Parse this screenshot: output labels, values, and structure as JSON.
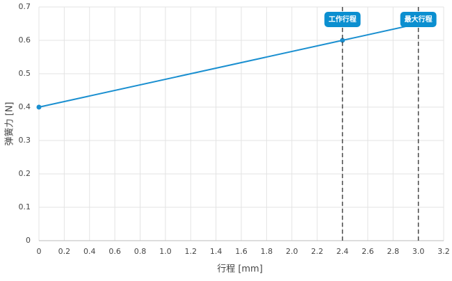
{
  "chart_data": {
    "type": "line",
    "x_label": "行程 [mm]",
    "y_label": "弹簧力 [N]",
    "x": [
      0,
      2.4,
      3.0
    ],
    "series": [
      {
        "name": "弹簧力",
        "color": "#1a8fd0",
        "values": [
          0.4,
          0.6,
          0.65
        ]
      }
    ],
    "xlim": [
      0,
      3.2
    ],
    "xticks": [
      0,
      0.2,
      0.4,
      0.6,
      0.8,
      {
        "value": 1,
        "label": "1.0"
      },
      1.2,
      1.4,
      1.6,
      1.8,
      {
        "value": 2,
        "label": "2.0"
      },
      2.2,
      2.4,
      2.6,
      2.8,
      {
        "value": 3,
        "label": "3.0"
      },
      3.2
    ],
    "ylim": [
      0,
      0.7
    ],
    "yticks": [
      0,
      0.1,
      0.2,
      0.3,
      0.4,
      0.5,
      0.6,
      0.7
    ],
    "grid": true,
    "annotations": [
      {
        "x": 2.4,
        "text": "工作行程",
        "color": "#0b8fd0"
      },
      {
        "x": 3.0,
        "text": "最大行程",
        "color": "#0b8fd0"
      }
    ]
  }
}
